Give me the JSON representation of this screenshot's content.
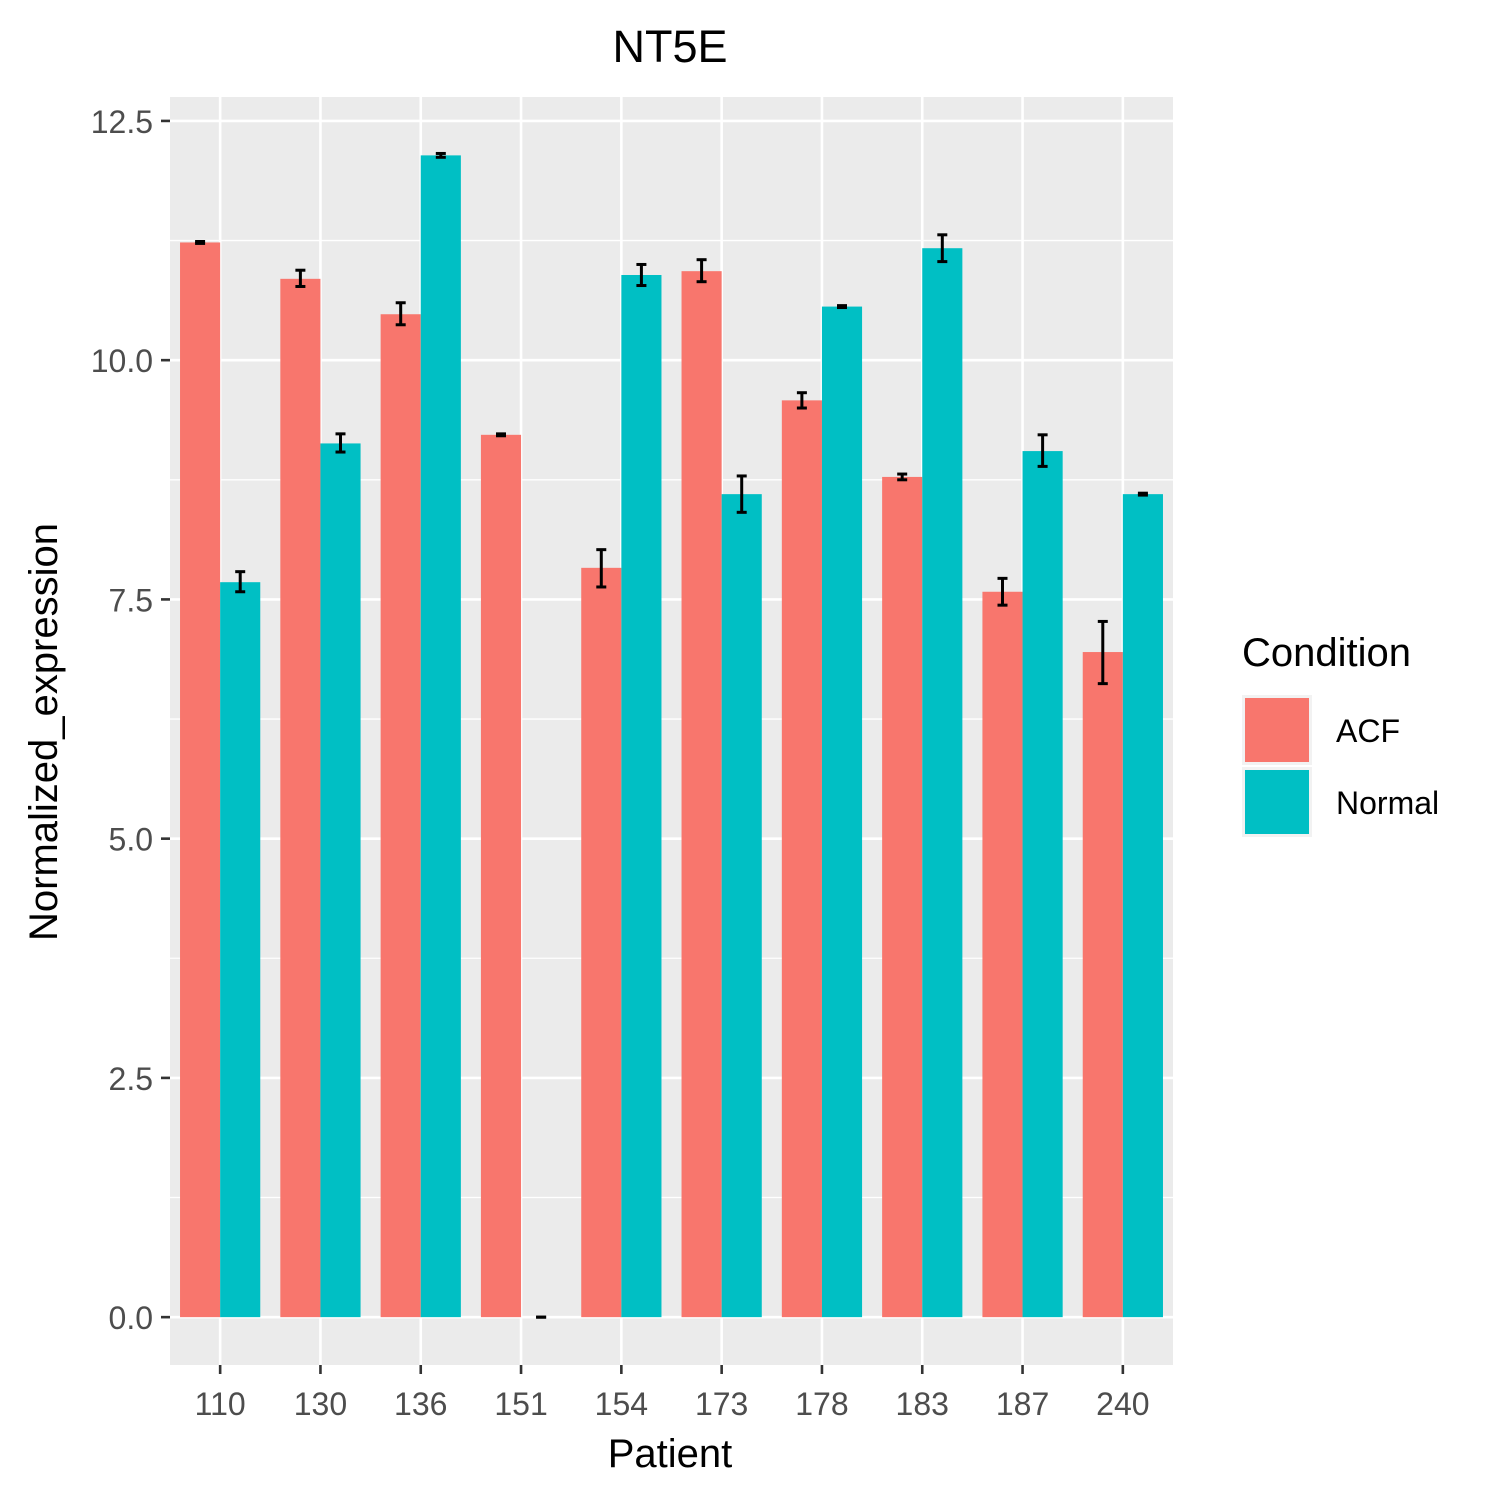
{
  "chart_data": {
    "type": "bar",
    "title": "NT5E",
    "xlabel": "Patient",
    "ylabel": "Normalized_expression",
    "categories": [
      "110",
      "130",
      "136",
      "151",
      "154",
      "173",
      "178",
      "183",
      "187",
      "240"
    ],
    "ylim": [
      -0.5,
      12.75
    ],
    "yticks": [
      0.0,
      2.5,
      5.0,
      7.5,
      10.0,
      12.5
    ],
    "ytick_labels": [
      "0.0",
      "2.5",
      "5.0",
      "7.5",
      "10.0",
      "12.5"
    ],
    "grid": true,
    "legend": {
      "title": "Condition",
      "position": "right"
    },
    "series": [
      {
        "name": "ACF",
        "color": "#F8766D",
        "values": [
          11.23,
          10.85,
          10.48,
          9.22,
          7.83,
          10.93,
          9.58,
          8.78,
          7.58,
          6.95
        ],
        "error_low": [
          11.22,
          10.77,
          10.37,
          9.21,
          7.63,
          10.82,
          9.5,
          8.75,
          7.44,
          6.62
        ],
        "error_high": [
          11.24,
          10.94,
          10.6,
          9.23,
          8.02,
          11.05,
          9.66,
          8.81,
          7.72,
          7.27
        ]
      },
      {
        "name": "Normal",
        "color": "#00BFC4",
        "values": [
          7.68,
          9.13,
          12.14,
          0.0,
          10.89,
          8.6,
          10.56,
          11.17,
          9.05,
          8.6
        ],
        "error_low": [
          7.58,
          9.04,
          12.12,
          0.0,
          10.78,
          8.41,
          10.55,
          11.03,
          8.89,
          8.59
        ],
        "error_high": [
          7.79,
          9.23,
          12.16,
          0.0,
          11.0,
          8.79,
          10.57,
          11.31,
          9.22,
          8.61
        ]
      }
    ]
  }
}
